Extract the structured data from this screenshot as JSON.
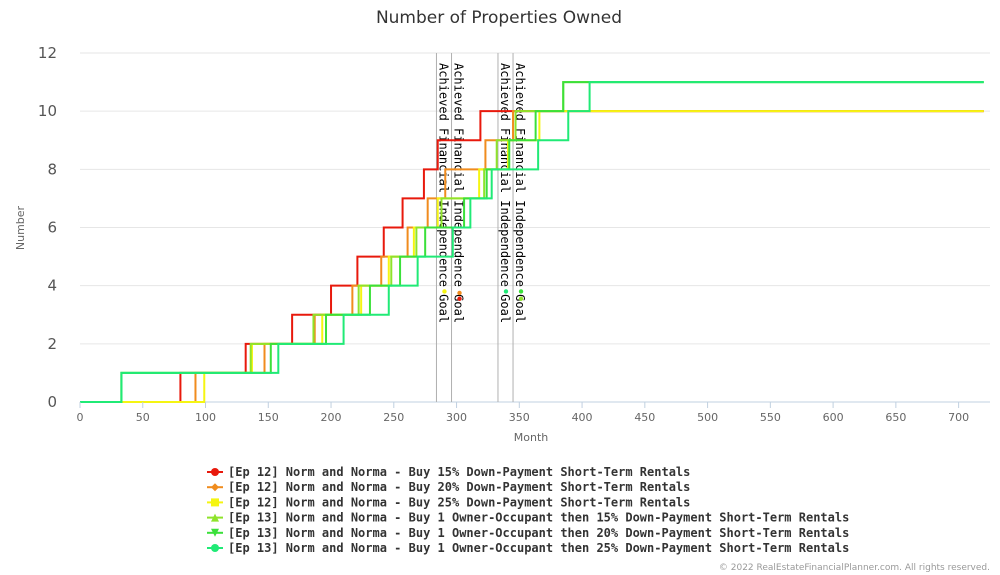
{
  "chart_data": {
    "type": "line",
    "title": "Number of Properties Owned",
    "xlabel": "Month",
    "ylabel": "Number",
    "xlim": [
      0,
      725
    ],
    "ylim": [
      0,
      12
    ],
    "xticks": [
      "0",
      "50",
      "100",
      "150",
      "200",
      "250",
      "300",
      "350",
      "400",
      "450",
      "500",
      "550",
      "600",
      "650",
      "700"
    ],
    "yticks": [
      "0",
      "2",
      "4",
      "6",
      "8",
      "10",
      "12"
    ],
    "grid": "horizontal",
    "legend_position": "bottom-center",
    "series": [
      {
        "name": "[Ep 12] Norm and Norma - Buy 15% Down-Payment Short-Term Rentals",
        "color": "#e8190c",
        "marker": "circle",
        "steps": [
          [
            0,
            0
          ],
          [
            80,
            1
          ],
          [
            132,
            2
          ],
          [
            169,
            3
          ],
          [
            200,
            4
          ],
          [
            221,
            5
          ],
          [
            242,
            6
          ],
          [
            257,
            7
          ],
          [
            274,
            8
          ],
          [
            285,
            9
          ],
          [
            319,
            10
          ],
          [
            720,
            10
          ]
        ]
      },
      {
        "name": "[Ep 12] Norm and Norma - Buy 20% Down-Payment Short-Term Rentals",
        "color": "#f08c1e",
        "marker": "diamond",
        "steps": [
          [
            0,
            0
          ],
          [
            92,
            1
          ],
          [
            147,
            2
          ],
          [
            187,
            3
          ],
          [
            217,
            4
          ],
          [
            240,
            5
          ],
          [
            261,
            6
          ],
          [
            277,
            7
          ],
          [
            291,
            8
          ],
          [
            323,
            9
          ],
          [
            345,
            10
          ],
          [
            720,
            10
          ]
        ]
      },
      {
        "name": "[Ep 12] Norm and Norma - Buy 25% Down-Payment Short-Term Rentals",
        "color": "#f5f512",
        "marker": "square",
        "steps": [
          [
            0,
            0
          ],
          [
            99,
            1
          ],
          [
            137,
            2
          ],
          [
            193,
            3
          ],
          [
            224,
            4
          ],
          [
            246,
            5
          ],
          [
            266,
            6
          ],
          [
            285,
            7
          ],
          [
            318,
            8
          ],
          [
            341,
            9
          ],
          [
            366,
            10
          ],
          [
            720,
            10
          ]
        ]
      },
      {
        "name": "[Ep 13] Norm and Norma - Buy 1 Owner-Occupant then 15% Down-Payment Short-Term Rentals",
        "color": "#8ee32b",
        "marker": "triangle",
        "steps": [
          [
            0,
            0
          ],
          [
            33,
            1
          ],
          [
            136,
            2
          ],
          [
            186,
            3
          ],
          [
            222,
            4
          ],
          [
            248,
            5
          ],
          [
            268,
            6
          ],
          [
            288,
            7
          ],
          [
            322,
            8
          ],
          [
            332,
            9
          ],
          [
            347,
            10
          ],
          [
            385,
            11
          ],
          [
            720,
            11
          ]
        ]
      },
      {
        "name": "[Ep 13] Norm and Norma - Buy 1 Owner-Occupant then 20% Down-Payment Short-Term Rentals",
        "color": "#3be03a",
        "marker": "triangle-down",
        "steps": [
          [
            0,
            0
          ],
          [
            33,
            1
          ],
          [
            152,
            2
          ],
          [
            196,
            3
          ],
          [
            231,
            4
          ],
          [
            255,
            5
          ],
          [
            275,
            6
          ],
          [
            306,
            7
          ],
          [
            324,
            8
          ],
          [
            342,
            9
          ],
          [
            363,
            10
          ],
          [
            385,
            11
          ],
          [
            720,
            11
          ]
        ]
      },
      {
        "name": "[Ep 13] Norm and Norma - Buy 1 Owner-Occupant then 25% Down-Payment Short-Term Rentals",
        "color": "#20ea76",
        "marker": "circle",
        "steps": [
          [
            0,
            0
          ],
          [
            33,
            1
          ],
          [
            158,
            2
          ],
          [
            210,
            3
          ],
          [
            246,
            4
          ],
          [
            269,
            5
          ],
          [
            297,
            6
          ],
          [
            311,
            7
          ],
          [
            328,
            8
          ],
          [
            365,
            9
          ],
          [
            389,
            10
          ],
          [
            406,
            11
          ],
          [
            720,
            11
          ]
        ]
      }
    ],
    "annotations": [
      {
        "x": 284,
        "label": "Achieved Financial Independence Goal",
        "dots": [
          {
            "y": 3.8,
            "color": "#f5f512"
          }
        ]
      },
      {
        "x": 296,
        "label": "Achieved Financial Independence Goal",
        "dots": [
          {
            "y": 3.75,
            "color": "#f08c1e"
          },
          {
            "y": 3.55,
            "color": "#e8190c"
          }
        ]
      },
      {
        "x": 333,
        "label": "Achieved Financial Independence Goal",
        "dots": [
          {
            "y": 3.8,
            "color": "#20ea76"
          }
        ]
      },
      {
        "x": 345,
        "label": "Achieved Financial Independence Goal",
        "dots": [
          {
            "y": 3.8,
            "color": "#3be03a"
          },
          {
            "y": 3.55,
            "color": "#8ee32b"
          }
        ]
      }
    ]
  },
  "credit": "© 2022 RealEstateFinancialPlanner.com. All rights reserved."
}
